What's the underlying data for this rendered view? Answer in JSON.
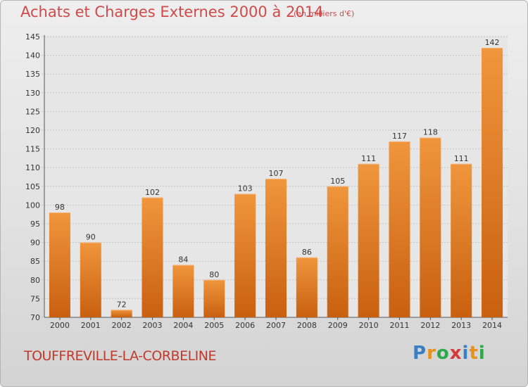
{
  "title": "Achats et Charges Externes 2000 à 2014",
  "unit_label": "(en milliers d'€)",
  "commune": "TOUFFREVILLE-LA-CORBELINE",
  "logo": {
    "letters": [
      "P",
      "r",
      "o",
      "x",
      "i",
      "t",
      "i"
    ],
    "colors": [
      "#3a7fc4",
      "#e8901b",
      "#2ea84a",
      "#d43a3a",
      "#3a7fc4",
      "#e8901b",
      "#2ea84a"
    ]
  },
  "colors": {
    "bar": "#f0963c",
    "bar_shadow": "#c86010",
    "title": "#d04a4a"
  },
  "chart_data": {
    "type": "bar",
    "title": "Achats et Charges Externes 2000 à 2014",
    "categories": [
      "2000",
      "2001",
      "2002",
      "2003",
      "2004",
      "2005",
      "2006",
      "2007",
      "2008",
      "2009",
      "2010",
      "2011",
      "2012",
      "2013",
      "2014"
    ],
    "values": [
      98,
      90,
      72,
      102,
      84,
      80,
      103,
      107,
      86,
      105,
      111,
      117,
      118,
      111,
      142
    ],
    "ylim": [
      70,
      145
    ],
    "yticks": [
      70,
      75,
      80,
      85,
      90,
      95,
      100,
      105,
      110,
      115,
      120,
      125,
      130,
      135,
      140,
      145
    ],
    "grid": true,
    "xlabel": "",
    "ylabel": ""
  }
}
